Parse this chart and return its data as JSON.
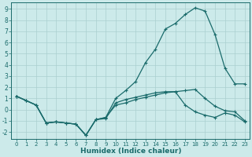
{
  "xlabel": "Humidex (Indice chaleur)",
  "bg_color": "#cceaea",
  "line_color": "#1a6b6b",
  "grid_color": "#aacfcf",
  "xlim": [
    -0.5,
    23.5
  ],
  "ylim": [
    -2.6,
    9.6
  ],
  "yticks": [
    -2,
    -1,
    0,
    1,
    2,
    3,
    4,
    5,
    6,
    7,
    8,
    9
  ],
  "xticks": [
    0,
    1,
    2,
    3,
    4,
    5,
    6,
    7,
    8,
    9,
    10,
    11,
    12,
    13,
    14,
    15,
    16,
    17,
    18,
    19,
    20,
    21,
    22,
    23
  ],
  "line1_x": [
    0,
    1,
    2,
    3,
    4,
    5,
    6,
    7,
    8,
    9,
    10,
    11,
    12,
    13,
    14,
    15,
    16,
    17,
    18,
    19,
    20,
    21,
    22,
    23
  ],
  "line1_y": [
    1.2,
    0.8,
    0.4,
    -1.2,
    -1.1,
    -1.2,
    -1.3,
    -2.3,
    -0.9,
    -0.8,
    0.6,
    0.9,
    1.1,
    1.3,
    1.5,
    1.6,
    1.6,
    1.7,
    1.8,
    1.0,
    0.3,
    -0.1,
    -0.2,
    -1.0
  ],
  "line2_x": [
    0,
    1,
    2,
    3,
    4,
    5,
    6,
    7,
    8,
    9,
    10,
    11,
    12,
    13,
    14,
    15,
    16,
    17,
    18,
    19,
    20,
    21,
    22,
    23
  ],
  "line2_y": [
    1.2,
    0.8,
    0.4,
    -1.2,
    -1.1,
    -1.2,
    -1.3,
    -2.3,
    -0.9,
    -0.7,
    1.0,
    1.7,
    2.5,
    4.2,
    5.4,
    7.2,
    7.7,
    8.5,
    9.1,
    8.8,
    6.7,
    3.7,
    2.3,
    2.3
  ],
  "line3_x": [
    0,
    1,
    2,
    3,
    4,
    5,
    6,
    7,
    8,
    9,
    10,
    11,
    12,
    13,
    14,
    15,
    16,
    17,
    18,
    19,
    20,
    21,
    22,
    23
  ],
  "line3_y": [
    1.2,
    0.8,
    0.4,
    -1.2,
    -1.1,
    -1.2,
    -1.3,
    -2.3,
    -0.9,
    -0.7,
    0.4,
    0.6,
    0.9,
    1.1,
    1.3,
    1.5,
    1.6,
    0.4,
    -0.2,
    -0.5,
    -0.7,
    -0.3,
    -0.5,
    -1.1
  ]
}
